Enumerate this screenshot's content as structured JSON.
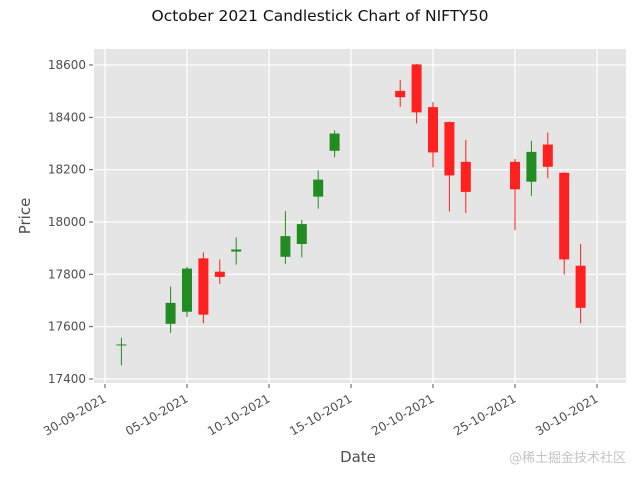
{
  "chart_data": {
    "type": "candlestick",
    "title": "October 2021 Candlestick Chart of NIFTY50",
    "xlabel": "Date",
    "ylabel": "Price",
    "ylim": [
      17400,
      18650
    ],
    "yticks": [
      17400,
      17600,
      17800,
      18000,
      18200,
      18400,
      18600
    ],
    "xticks": [
      "30-09-2021",
      "05-10-2021",
      "10-10-2021",
      "15-10-2021",
      "20-10-2021",
      "25-10-2021",
      "30-10-2021"
    ],
    "grid": true,
    "up_color": "#228b22",
    "down_color": "#ff2020",
    "background": "#e5e5e5",
    "candles": [
      {
        "date": "01-10-2021",
        "open": 17531,
        "high": 17558,
        "low": 17452,
        "close": 17532
      },
      {
        "date": "04-10-2021",
        "open": 17611,
        "high": 17753,
        "low": 17576,
        "close": 17691
      },
      {
        "date": "05-10-2021",
        "open": 17657,
        "high": 17829,
        "low": 17637,
        "close": 17822
      },
      {
        "date": "06-10-2021",
        "open": 17861,
        "high": 17884,
        "low": 17613,
        "close": 17646
      },
      {
        "date": "07-10-2021",
        "open": 17810,
        "high": 17857,
        "low": 17763,
        "close": 17790
      },
      {
        "date": "08-10-2021",
        "open": 17887,
        "high": 17941,
        "low": 17837,
        "close": 17895
      },
      {
        "date": "11-10-2021",
        "open": 17867,
        "high": 18042,
        "low": 17840,
        "close": 17946
      },
      {
        "date": "12-10-2021",
        "open": 17916,
        "high": 18008,
        "low": 17865,
        "close": 17992
      },
      {
        "date": "13-10-2021",
        "open": 18097,
        "high": 18197,
        "low": 18051,
        "close": 18162
      },
      {
        "date": "14-10-2021",
        "open": 18272,
        "high": 18350,
        "low": 18248,
        "close": 18338
      },
      {
        "date": "18-10-2021",
        "open": 18501,
        "high": 18543,
        "low": 18440,
        "close": 18477
      },
      {
        "date": "19-10-2021",
        "open": 18602,
        "high": 18604,
        "low": 18377,
        "close": 18419
      },
      {
        "date": "20-10-2021",
        "open": 18439,
        "high": 18458,
        "low": 18209,
        "close": 18266
      },
      {
        "date": "21-10-2021",
        "open": 18382,
        "high": 18384,
        "low": 18040,
        "close": 18178
      },
      {
        "date": "22-10-2021",
        "open": 18230,
        "high": 18314,
        "low": 18034,
        "close": 18115
      },
      {
        "date": "25-10-2021",
        "open": 18230,
        "high": 18241,
        "low": 17969,
        "close": 18125
      },
      {
        "date": "26-10-2021",
        "open": 18154,
        "high": 18310,
        "low": 18100,
        "close": 18268
      },
      {
        "date": "27-10-2021",
        "open": 18296,
        "high": 18342,
        "low": 18167,
        "close": 18211
      },
      {
        "date": "28-10-2021",
        "open": 18188,
        "high": 18190,
        "low": 17799,
        "close": 17857
      },
      {
        "date": "29-10-2021",
        "open": 17833,
        "high": 17916,
        "low": 17613,
        "close": 17672
      }
    ]
  },
  "watermark": "@稀土掘金技术社区"
}
